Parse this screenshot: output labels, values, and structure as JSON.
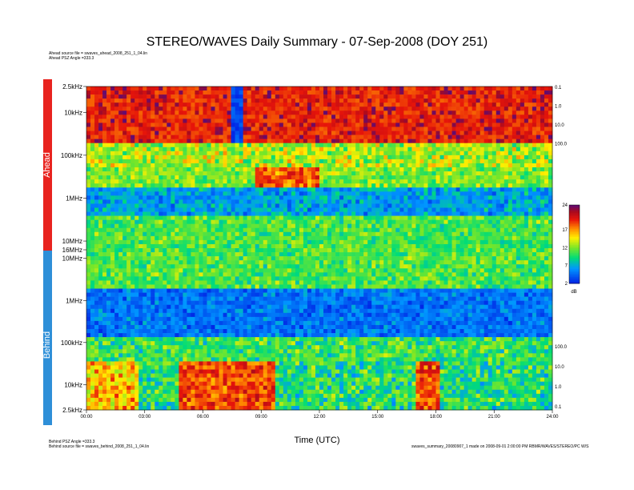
{
  "header": {
    "title": "STEREO/WAVES Daily Summary - 07-Sep-2008 (DOY 251)",
    "ahead_source": "Ahead source file = swaves_ahead_2008_251_1_04.lin",
    "ahead_psz": "Ahead PSZ Angle =333.3",
    "behind_psz": "Behind PSZ Angle =333.3",
    "behind_source": "Behind source file = swaves_behind_2008_251_1_04.lin",
    "footer_note": "swaves_summary_20080907_1 made on 2008-09-01 2:00:00 PM RBMR/WAVES/STEREO/PC W/S"
  },
  "labels": {
    "ahead": "Ahead",
    "behind": "Behind",
    "colorbar_unit": "dB"
  },
  "colors": {
    "ahead_bar": "#e8231f",
    "behind_bar": "#2e8fd8"
  },
  "chart_data": {
    "type": "heatmap",
    "xlabel": "Time (UTC)",
    "x_ticks": [
      "00:00",
      "03:00",
      "06:00",
      "09:00",
      "12:00",
      "15:00",
      "18:00",
      "21:00",
      "24:00"
    ],
    "xlim": [
      0,
      24
    ],
    "panels": [
      {
        "name": "Ahead",
        "y_scale": "log",
        "y_ticks": [
          "2.5kHz",
          "10kHz",
          "100kHz",
          "1MHz",
          "10MHz",
          "16MHz"
        ],
        "right_ticks": [
          "0.1",
          "1.0",
          "10.0",
          "100.0"
        ],
        "bands": [
          {
            "range": "2.5kHz-40kHz",
            "dominant": "red/orange, purple peaks"
          },
          {
            "range": "40kHz-150kHz",
            "dominant": "mixed green/yellow/red"
          },
          {
            "range": "150kHz-16MHz",
            "dominant": "blue/green noise"
          }
        ]
      },
      {
        "name": "Behind",
        "y_scale": "log",
        "y_ticks": [
          "10MHz",
          "1MHz",
          "100kHz",
          "10kHz",
          "2.5kHz"
        ],
        "right_ticks": [
          "100.0",
          "10.0",
          "1.0",
          "0.1"
        ],
        "bands": [
          {
            "range": "16MHz-1MHz",
            "dominant": "green/cyan noise"
          },
          {
            "range": "1MHz-100kHz",
            "dominant": "blue"
          },
          {
            "range": "100kHz-2.5kHz",
            "dominant": "green/blue, red/orange 05:00-10:00 and 17:00-18:00"
          }
        ]
      }
    ],
    "colorbar": {
      "ticks": [
        "24",
        "17",
        "12",
        "7",
        "2"
      ],
      "range": [
        2,
        24
      ],
      "unit": "dB"
    }
  }
}
